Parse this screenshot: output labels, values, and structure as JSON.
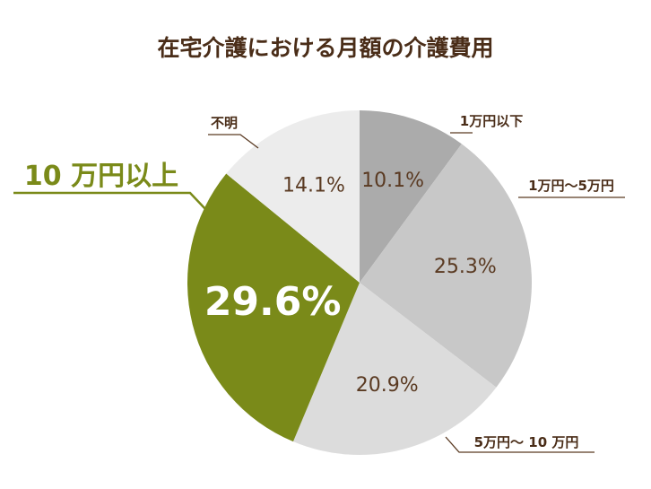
{
  "chart_data": {
    "type": "pie",
    "title": "在宅介護における月額の介護費用",
    "slices": [
      {
        "label": "1万円以下",
        "value": 10.1,
        "value_label": "10.1%",
        "color": "#ababab",
        "value_color": "#5a3a22",
        "highlight": false
      },
      {
        "label": "1万円～5万円",
        "value": 25.3,
        "value_label": "25.3%",
        "color": "#c8c8c8",
        "value_color": "#5a3a22",
        "highlight": false
      },
      {
        "label": "5万円～ 10 万円",
        "value": 20.9,
        "value_label": "20.9%",
        "color": "#dcdcdc",
        "value_color": "#5a3a22",
        "highlight": false
      },
      {
        "label": "10 万円以上",
        "value": 29.6,
        "value_label": "29.6%",
        "color": "#7a8a19",
        "value_color": "#ffffff",
        "highlight": true
      },
      {
        "label": "不明",
        "value": 14.1,
        "value_label": "14.1%",
        "color": "#ececec",
        "value_color": "#5a3a22",
        "highlight": false
      }
    ],
    "start_angle_deg": 0,
    "direction": "clockwise",
    "colors": {
      "title": "#4a2d18",
      "callout_line": "#5a3a22",
      "highlight_label": "#7a8a19"
    }
  }
}
